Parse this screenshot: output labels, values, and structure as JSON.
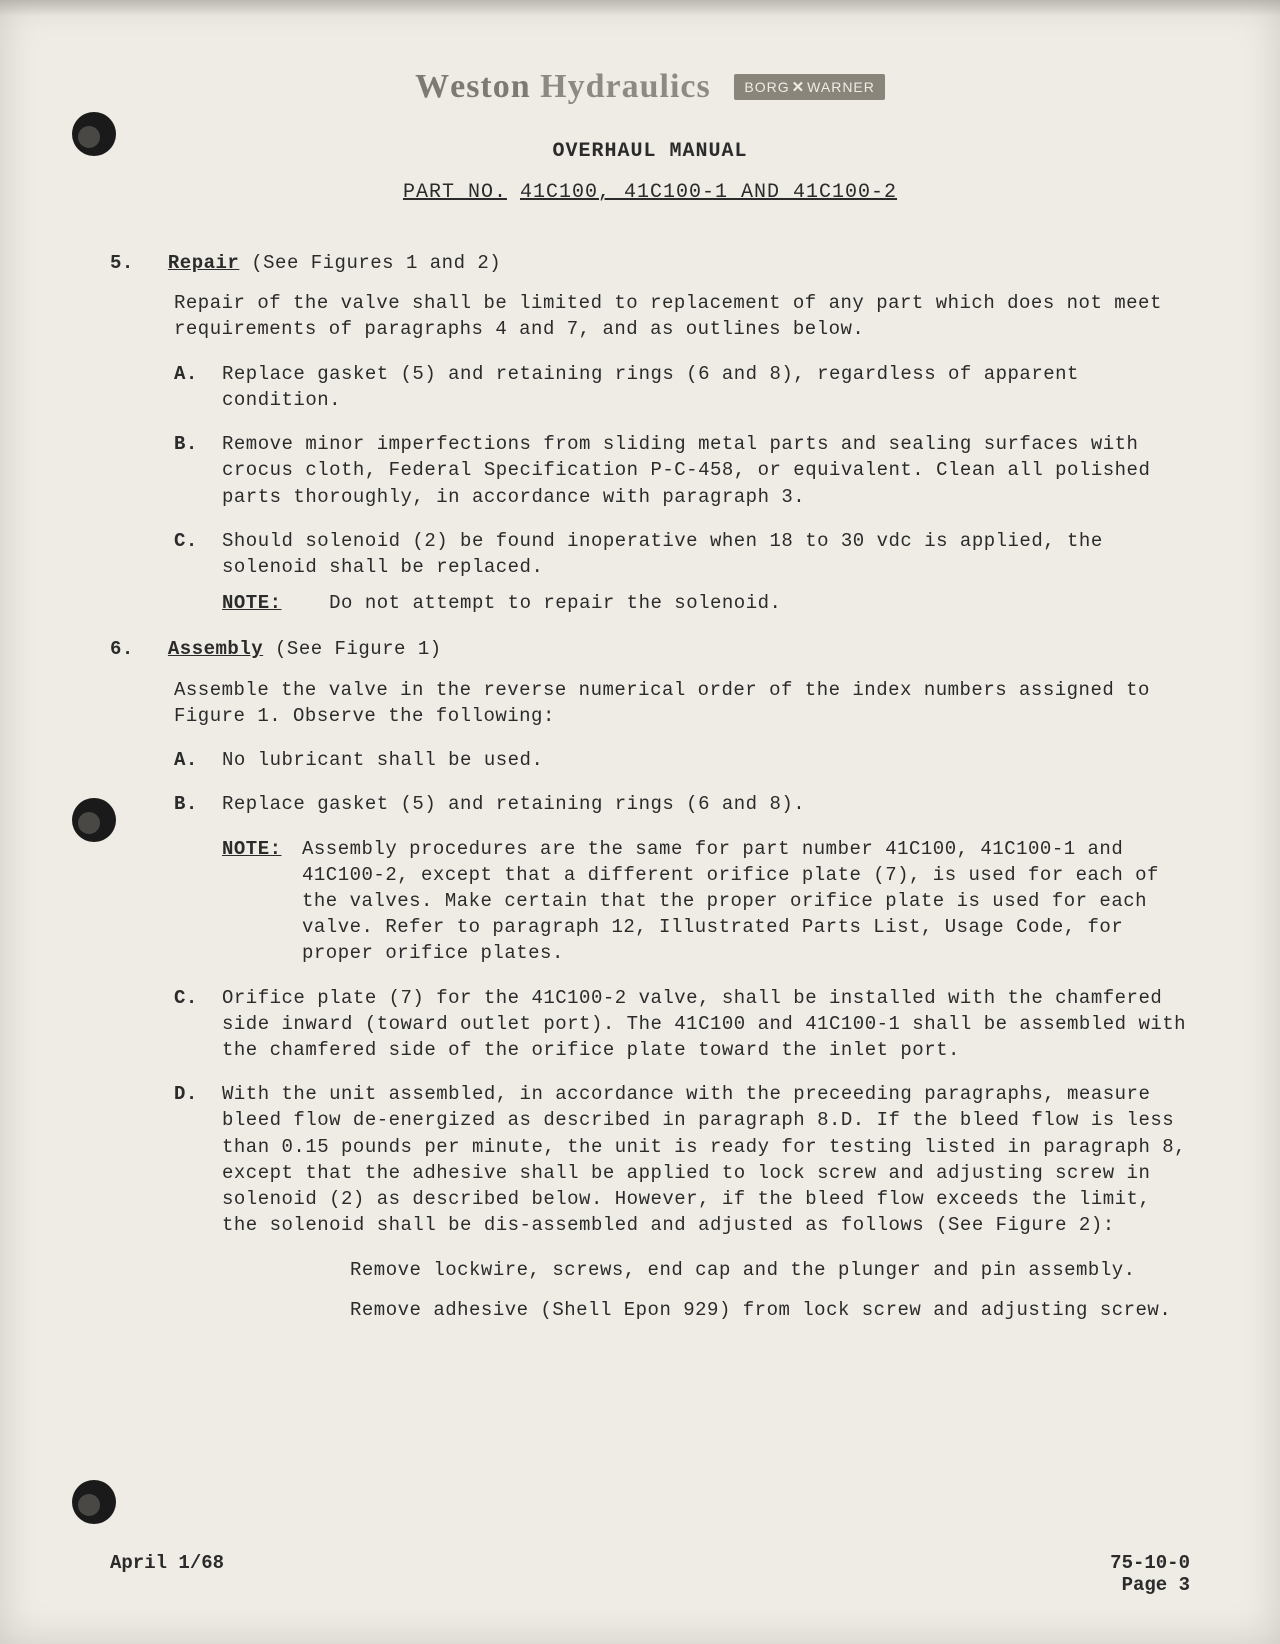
{
  "brand": {
    "name": "Weston Hydraulics",
    "badge_left": "BORG",
    "badge_right": "WARNER"
  },
  "doc_title": "OVERHAUL MANUAL",
  "part_line_prefix": "PART NO.",
  "part_line_numbers": "41C100, 41C100-1 AND 41C100-2",
  "sections": {
    "s5": {
      "num": "5.",
      "title": "Repair",
      "tail": "  (See Figures 1 and 2)",
      "intro": "Repair of the valve shall be limited to replacement of any part which does not meet requirements of paragraphs 4 and 7, and as outlines below.",
      "A": "Replace gasket (5) and retaining rings (6 and 8), regardless of apparent condition.",
      "B": "Remove minor imperfections from sliding metal parts and sealing surfaces with crocus cloth, Federal Specification P-C-458, or equivalent.  Clean all polished parts thoroughly, in accordance with paragraph 3.",
      "C": "Should solenoid (2) be found inoperative when 18 to 30 vdc is applied, the solenoid shall be replaced.",
      "C_note": "Do not attempt to repair the solenoid."
    },
    "s6": {
      "num": "6.",
      "title": "Assembly",
      "tail": "   (See Figure 1)",
      "intro": "Assemble the valve in the reverse numerical order of the index numbers assigned to Figure 1.  Observe the following:",
      "A": "No lubricant shall be used.",
      "B": "Replace gasket (5) and retaining rings (6 and 8).",
      "B_note": "Assembly procedures are the same for part number 41C100, 41C100-1 and 41C100-2, except that a different orifice plate (7), is used for each of the valves.  Make certain that the proper orifice plate is used for each valve.  Refer to paragraph 12, Illustrated Parts List, Usage Code, for proper orifice plates.",
      "C": "Orifice plate (7) for the 41C100-2 valve, shall be installed with the chamfered side inward (toward outlet port).  The 41C100 and 41C100-1 shall be assembled with the chamfered side of the orifice plate toward the inlet port.",
      "D": "With the unit assembled, in accordance with the preceeding paragraphs, measure bleed flow de-energized as described in paragraph 8.D.  If the bleed flow is less than 0.15 pounds per minute, the unit is ready for testing listed in paragraph 8, except  that the adhesive shall be applied to lock screw and adjusting screw in solenoid (2) as described below.  However, if the bleed flow exceeds the limit, the solenoid shall be dis-assembled and adjusted as follows (See Figure 2):",
      "D_step1": "Remove lockwire, screws, end cap and the plunger and pin assembly.",
      "D_step2": "Remove adhesive (Shell Epon 929) from lock screw and adjusting screw."
    }
  },
  "note_label": "NOTE:",
  "labels": {
    "A": "A.",
    "B": "B.",
    "C": "C.",
    "D": "D."
  },
  "footer": {
    "left": "April 1/68",
    "right_top": "75-10-0",
    "right_bot": "Page 3"
  }
}
